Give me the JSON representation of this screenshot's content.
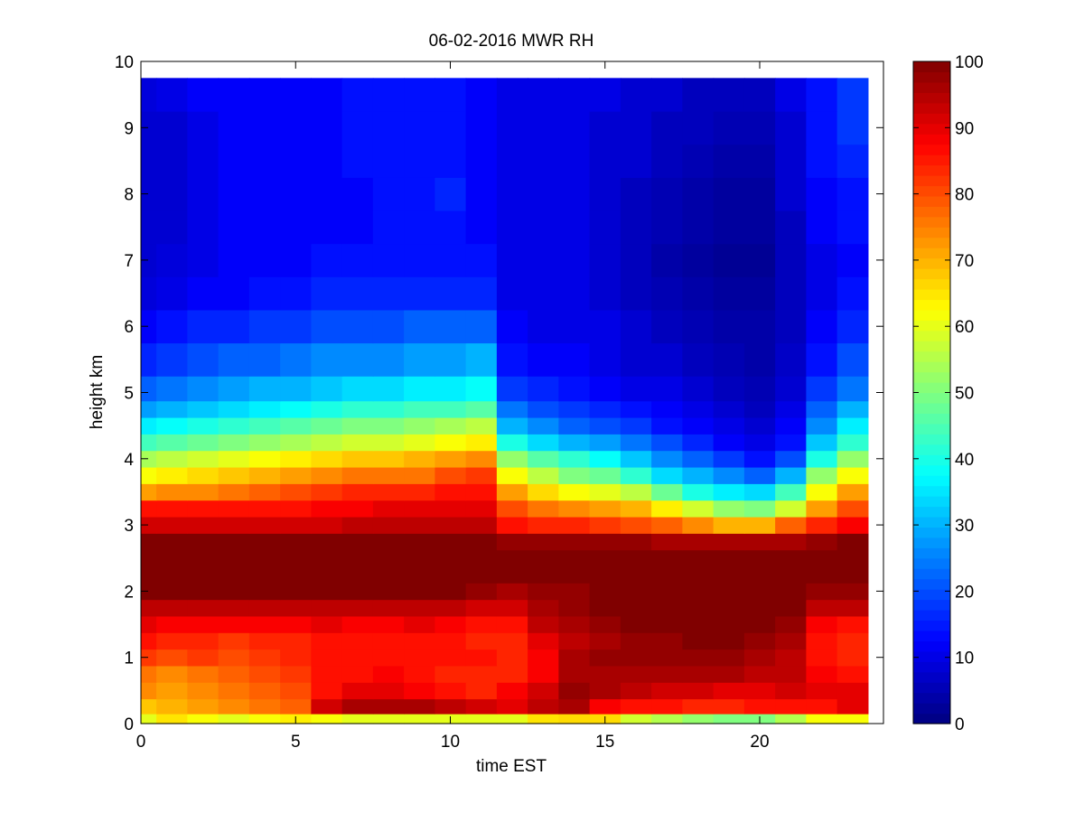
{
  "chart_data": {
    "type": "heatmap",
    "title": "06-02-2016 MWR RH",
    "xlabel": "time EST",
    "ylabel": "height km",
    "xlim": [
      0,
      24
    ],
    "ylim": [
      0,
      10
    ],
    "x_ticks": [
      0,
      5,
      10,
      15,
      20
    ],
    "y_ticks": [
      0,
      1,
      2,
      3,
      4,
      5,
      6,
      7,
      8,
      9,
      10
    ],
    "colorbar": {
      "colormap": "jet",
      "range": [
        0,
        100
      ],
      "ticks": [
        0,
        10,
        20,
        30,
        40,
        50,
        60,
        70,
        80,
        90,
        100
      ]
    },
    "x": [
      0,
      1,
      2,
      3,
      4,
      5,
      6,
      7,
      8,
      9,
      10,
      11,
      12,
      13,
      14,
      15,
      16,
      17,
      18,
      19,
      20,
      21,
      22,
      23
    ],
    "y": [
      0.05,
      0.25,
      0.5,
      0.75,
      1.0,
      1.25,
      1.5,
      1.75,
      2.0,
      2.25,
      2.5,
      2.75,
      3.0,
      3.25,
      3.5,
      3.75,
      4.0,
      4.25,
      4.5,
      4.75,
      5.0,
      5.5,
      6.0,
      6.5,
      7.0,
      7.5,
      8.0,
      8.5,
      9.0,
      9.5
    ],
    "z": [
      [
        60,
        65,
        62,
        60,
        62,
        64,
        62,
        60,
        60,
        60,
        60,
        60,
        60,
        65,
        66,
        66,
        58,
        55,
        52,
        50,
        50,
        55,
        62,
        62
      ],
      [
        68,
        70,
        72,
        74,
        76,
        78,
        92,
        96,
        96,
        96,
        94,
        92,
        90,
        94,
        96,
        88,
        86,
        86,
        84,
        84,
        86,
        86,
        86,
        90
      ],
      [
        74,
        72,
        74,
        76,
        78,
        80,
        86,
        90,
        90,
        88,
        86,
        84,
        88,
        92,
        98,
        96,
        94,
        92,
        92,
        90,
        90,
        92,
        90,
        90
      ],
      [
        76,
        74,
        76,
        78,
        80,
        82,
        86,
        86,
        88,
        86,
        84,
        84,
        84,
        88,
        96,
        96,
        96,
        96,
        96,
        96,
        94,
        94,
        88,
        86
      ],
      [
        82,
        80,
        82,
        80,
        82,
        84,
        86,
        86,
        86,
        86,
        86,
        86,
        84,
        88,
        96,
        98,
        98,
        98,
        98,
        98,
        96,
        94,
        86,
        84
      ],
      [
        86,
        84,
        84,
        82,
        84,
        84,
        86,
        86,
        86,
        86,
        86,
        84,
        84,
        90,
        94,
        96,
        98,
        98,
        100,
        100,
        98,
        96,
        86,
        84
      ],
      [
        90,
        88,
        88,
        88,
        88,
        88,
        90,
        88,
        88,
        90,
        88,
        86,
        86,
        94,
        96,
        98,
        100,
        100,
        100,
        100,
        100,
        98,
        88,
        86
      ],
      [
        94,
        94,
        94,
        94,
        94,
        94,
        94,
        94,
        94,
        94,
        94,
        92,
        92,
        96,
        98,
        100,
        100,
        100,
        100,
        100,
        100,
        100,
        94,
        94
      ],
      [
        100,
        100,
        100,
        100,
        100,
        100,
        100,
        100,
        100,
        100,
        100,
        98,
        96,
        98,
        98,
        100,
        100,
        100,
        100,
        100,
        100,
        100,
        98,
        98
      ],
      [
        100,
        100,
        100,
        100,
        100,
        100,
        100,
        100,
        100,
        100,
        100,
        100,
        100,
        100,
        100,
        100,
        100,
        100,
        100,
        100,
        100,
        100,
        100,
        100
      ],
      [
        100,
        100,
        100,
        100,
        100,
        100,
        100,
        100,
        100,
        100,
        100,
        100,
        100,
        100,
        100,
        100,
        100,
        100,
        100,
        100,
        100,
        100,
        100,
        100
      ],
      [
        100,
        100,
        100,
        100,
        100,
        100,
        100,
        100,
        100,
        100,
        100,
        100,
        98,
        98,
        98,
        98,
        98,
        96,
        96,
        96,
        96,
        96,
        98,
        100
      ],
      [
        92,
        92,
        92,
        92,
        92,
        92,
        92,
        94,
        94,
        94,
        94,
        94,
        86,
        84,
        84,
        82,
        80,
        78,
        74,
        70,
        70,
        78,
        84,
        88
      ],
      [
        86,
        86,
        86,
        86,
        86,
        86,
        88,
        88,
        90,
        90,
        90,
        90,
        80,
        76,
        74,
        72,
        70,
        64,
        58,
        52,
        50,
        58,
        72,
        80
      ],
      [
        72,
        74,
        74,
        76,
        78,
        80,
        82,
        84,
        84,
        84,
        86,
        86,
        72,
        66,
        62,
        60,
        56,
        48,
        40,
        36,
        34,
        44,
        62,
        72
      ],
      [
        62,
        64,
        66,
        68,
        70,
        72,
        74,
        76,
        76,
        76,
        80,
        82,
        62,
        56,
        50,
        48,
        42,
        34,
        30,
        26,
        22,
        30,
        52,
        62
      ],
      [
        54,
        56,
        58,
        60,
        62,
        64,
        66,
        68,
        68,
        70,
        72,
        74,
        52,
        46,
        42,
        38,
        32,
        26,
        22,
        18,
        14,
        20,
        40,
        52
      ],
      [
        44,
        46,
        48,
        50,
        52,
        54,
        56,
        58,
        58,
        60,
        62,
        64,
        40,
        34,
        30,
        28,
        24,
        20,
        16,
        12,
        10,
        14,
        32,
        42
      ],
      [
        36,
        38,
        40,
        42,
        44,
        46,
        48,
        50,
        50,
        52,
        54,
        56,
        30,
        26,
        22,
        20,
        18,
        14,
        12,
        10,
        8,
        12,
        26,
        36
      ],
      [
        28,
        30,
        32,
        34,
        36,
        38,
        40,
        42,
        42,
        44,
        44,
        46,
        24,
        20,
        18,
        16,
        14,
        12,
        10,
        8,
        6,
        10,
        22,
        30
      ],
      [
        22,
        24,
        26,
        28,
        30,
        30,
        32,
        34,
        34,
        36,
        36,
        38,
        18,
        16,
        14,
        12,
        10,
        10,
        8,
        6,
        5,
        8,
        18,
        24
      ],
      [
        16,
        18,
        20,
        22,
        22,
        24,
        26,
        26,
        26,
        28,
        28,
        30,
        14,
        12,
        12,
        10,
        8,
        8,
        6,
        5,
        4,
        7,
        14,
        20
      ],
      [
        12,
        14,
        16,
        16,
        18,
        18,
        20,
        20,
        20,
        22,
        22,
        22,
        12,
        10,
        10,
        10,
        8,
        6,
        5,
        4,
        4,
        6,
        12,
        16
      ],
      [
        9,
        10,
        12,
        12,
        14,
        14,
        16,
        16,
        16,
        16,
        16,
        16,
        10,
        10,
        10,
        8,
        6,
        5,
        4,
        3,
        3,
        6,
        10,
        14
      ],
      [
        8,
        9,
        10,
        12,
        12,
        12,
        14,
        14,
        14,
        14,
        14,
        14,
        10,
        10,
        10,
        8,
        6,
        4,
        3,
        2,
        2,
        6,
        10,
        12
      ],
      [
        8,
        8,
        10,
        12,
        12,
        12,
        12,
        12,
        14,
        14,
        14,
        12,
        10,
        10,
        10,
        8,
        6,
        5,
        4,
        3,
        3,
        6,
        12,
        14
      ],
      [
        8,
        8,
        10,
        12,
        12,
        12,
        12,
        12,
        14,
        14,
        16,
        12,
        10,
        10,
        10,
        8,
        6,
        5,
        4,
        3,
        3,
        8,
        12,
        14
      ],
      [
        8,
        8,
        10,
        12,
        12,
        12,
        12,
        14,
        14,
        14,
        14,
        12,
        10,
        10,
        10,
        8,
        8,
        6,
        5,
        4,
        4,
        8,
        14,
        16
      ],
      [
        8,
        8,
        10,
        12,
        12,
        12,
        12,
        14,
        14,
        14,
        14,
        12,
        10,
        10,
        10,
        8,
        8,
        6,
        6,
        5,
        5,
        8,
        14,
        18
      ],
      [
        9,
        10,
        12,
        12,
        12,
        12,
        12,
        14,
        14,
        14,
        14,
        12,
        10,
        10,
        10,
        10,
        8,
        8,
        6,
        6,
        6,
        10,
        14,
        18
      ]
    ]
  }
}
